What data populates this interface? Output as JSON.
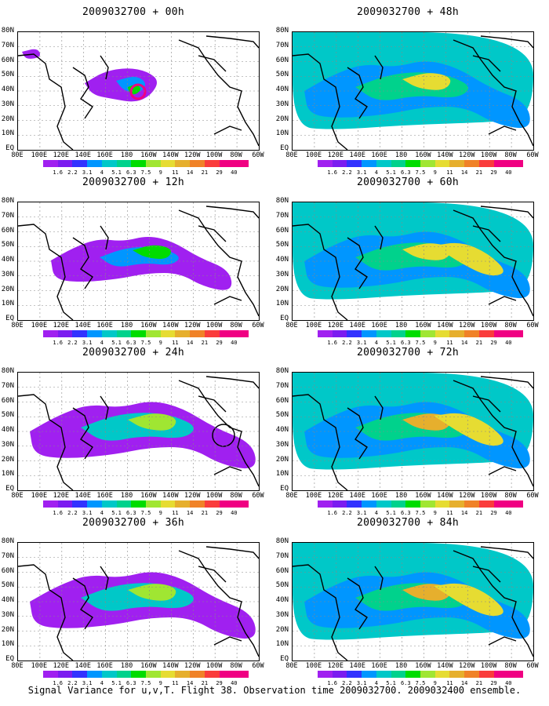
{
  "caption": "Signal Variance for u,v,T. Flight 38. Observation time 2009032700. 2009032400 ensemble.",
  "x_ticks": [
    "80E",
    "100E",
    "120E",
    "140E",
    "160E",
    "180",
    "160W",
    "140W",
    "120W",
    "100W",
    "80W",
    "60W"
  ],
  "y_ticks": [
    "80N",
    "70N",
    "60N",
    "50N",
    "40N",
    "30N",
    "20N",
    "10N",
    "EQ"
  ],
  "colorbar": {
    "labels": [
      "1.6",
      "2.2",
      "3.1",
      "4",
      "5.1",
      "6.3",
      "7.5",
      "9",
      "11",
      "14",
      "21",
      "29",
      "40"
    ],
    "colors": [
      "#a020f0",
      "#7b1cf0",
      "#3232ff",
      "#0096ff",
      "#00c8c8",
      "#00d28c",
      "#00dc00",
      "#a0e632",
      "#e6dc32",
      "#e6af2d",
      "#f08228",
      "#fa3c3c",
      "#f00082"
    ]
  },
  "panels": [
    {
      "title": "2009032700 + 00h",
      "intensity": 0
    },
    {
      "title": "2009032700 + 48h",
      "intensity": 4
    },
    {
      "title": "2009032700 + 12h",
      "intensity": 1
    },
    {
      "title": "2009032700 + 60h",
      "intensity": 5
    },
    {
      "title": "2009032700 + 24h",
      "intensity": 2
    },
    {
      "title": "2009032700 + 72h",
      "intensity": 6
    },
    {
      "title": "2009032700 + 36h",
      "intensity": 3
    },
    {
      "title": "2009032700 + 84h",
      "intensity": 7
    }
  ]
}
